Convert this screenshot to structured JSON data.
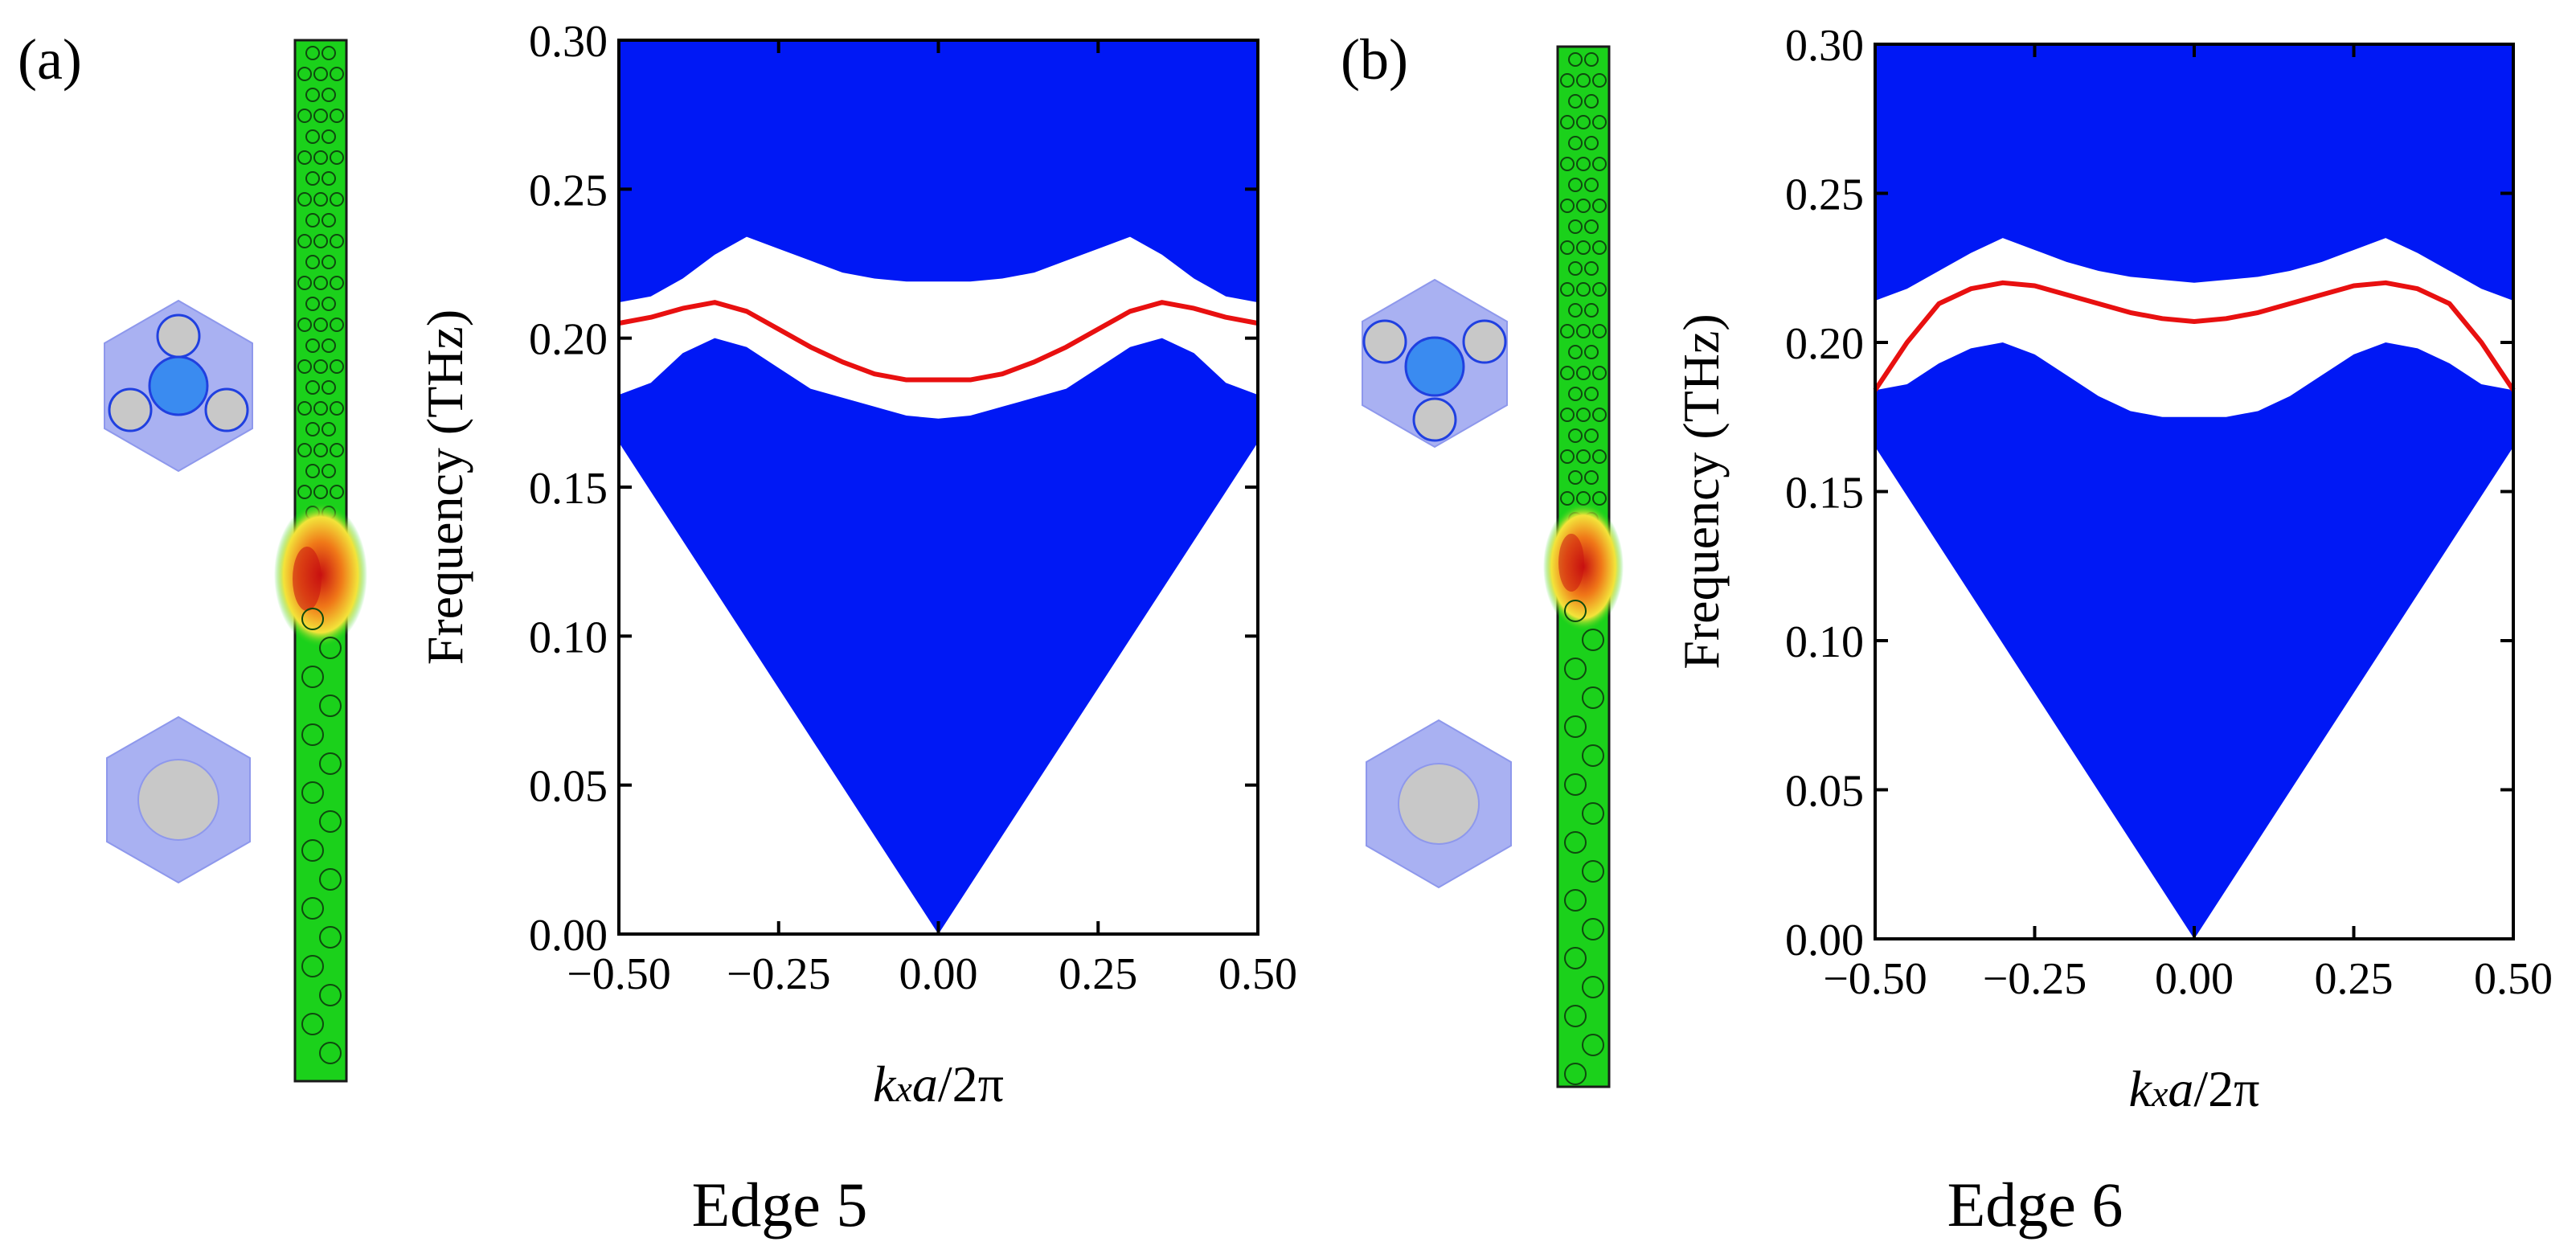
{
  "colors": {
    "bulk": "#0018F5",
    "edge_mode": "#E81010",
    "strip_bg": "#1BD11B",
    "hex_fill": "#A9B1F2",
    "center_disk": "#3A8BF0",
    "gray_disk": "#C8C8C8"
  },
  "chart_data": [
    {
      "type": "area",
      "panel_label": "(a)",
      "caption": "Edge 5",
      "xlabel_k": "k",
      "xlabel_x": "x",
      "xlabel_a": "a",
      "xlabel_rest": "/2π",
      "ylabel": "Frequency (THz)",
      "xlim": [
        -0.5,
        0.5
      ],
      "ylim": [
        0,
        0.3
      ],
      "xticks": [
        -0.5,
        -0.25,
        0,
        0.25,
        0.5
      ],
      "xtick_labels": [
        "−0.50",
        "−0.25",
        "0.00",
        "0.25",
        "0.50"
      ],
      "yticks": [
        0,
        0.05,
        0.1,
        0.15,
        0.2,
        0.25,
        0.3
      ],
      "ytick_labels": [
        "0.00",
        "0.05",
        "0.10",
        "0.15",
        "0.20",
        "0.25",
        "0.30"
      ],
      "lower_bulk_top": {
        "k": [
          -0.5,
          -0.45,
          -0.4,
          -0.35,
          -0.3,
          -0.25,
          -0.2,
          -0.15,
          -0.1,
          -0.05,
          0,
          0.05,
          0.1,
          0.15,
          0.2,
          0.25,
          0.3,
          0.35,
          0.4,
          0.45,
          0.5
        ],
        "f": [
          0.181,
          0.185,
          0.195,
          0.2,
          0.197,
          0.19,
          0.183,
          0.18,
          0.177,
          0.174,
          0.173,
          0.174,
          0.177,
          0.18,
          0.183,
          0.19,
          0.197,
          0.2,
          0.195,
          0.185,
          0.181
        ]
      },
      "lower_bulk_bottom": {
        "k": [
          -0.5,
          0,
          0.5
        ],
        "f": [
          0.165,
          0.0,
          0.165
        ]
      },
      "upper_bulk_bottom": {
        "k": [
          -0.5,
          -0.45,
          -0.4,
          -0.35,
          -0.3,
          -0.25,
          -0.2,
          -0.15,
          -0.1,
          -0.05,
          0,
          0.05,
          0.1,
          0.15,
          0.2,
          0.25,
          0.3,
          0.35,
          0.4,
          0.45,
          0.5
        ],
        "f": [
          0.212,
          0.214,
          0.22,
          0.228,
          0.234,
          0.23,
          0.226,
          0.222,
          0.22,
          0.219,
          0.219,
          0.219,
          0.22,
          0.222,
          0.226,
          0.23,
          0.234,
          0.228,
          0.22,
          0.214,
          0.212
        ]
      },
      "edge_mode": {
        "k": [
          -0.5,
          -0.45,
          -0.4,
          -0.35,
          -0.3,
          -0.25,
          -0.2,
          -0.15,
          -0.1,
          -0.05,
          0,
          0.05,
          0.1,
          0.15,
          0.2,
          0.25,
          0.3,
          0.35,
          0.4,
          0.45,
          0.5
        ],
        "f": [
          0.205,
          0.207,
          0.21,
          0.212,
          0.209,
          0.203,
          0.197,
          0.192,
          0.188,
          0.186,
          0.186,
          0.186,
          0.188,
          0.192,
          0.197,
          0.203,
          0.209,
          0.212,
          0.21,
          0.207,
          0.205
        ]
      }
    },
    {
      "type": "area",
      "panel_label": "(b)",
      "caption": "Edge 6",
      "xlabel_k": "k",
      "xlabel_x": "x",
      "xlabel_a": "a",
      "xlabel_rest": "/2π",
      "ylabel": "Frequency (THz)",
      "xlim": [
        -0.5,
        0.5
      ],
      "ylim": [
        0,
        0.3
      ],
      "xticks": [
        -0.5,
        -0.25,
        0,
        0.25,
        0.5
      ],
      "xtick_labels": [
        "−0.50",
        "−0.25",
        "0.00",
        "0.25",
        "0.50"
      ],
      "yticks": [
        0,
        0.05,
        0.1,
        0.15,
        0.2,
        0.25,
        0.3
      ],
      "ytick_labels": [
        "0.00",
        "0.05",
        "0.10",
        "0.15",
        "0.20",
        "0.25",
        "0.30"
      ],
      "lower_bulk_top": {
        "k": [
          -0.5,
          -0.45,
          -0.4,
          -0.35,
          -0.3,
          -0.25,
          -0.2,
          -0.15,
          -0.1,
          -0.05,
          0,
          0.05,
          0.1,
          0.15,
          0.2,
          0.25,
          0.3,
          0.35,
          0.4,
          0.45,
          0.5
        ],
        "f": [
          0.184,
          0.186,
          0.193,
          0.198,
          0.2,
          0.196,
          0.189,
          0.182,
          0.177,
          0.175,
          0.175,
          0.175,
          0.177,
          0.182,
          0.189,
          0.196,
          0.2,
          0.198,
          0.193,
          0.186,
          0.184
        ]
      },
      "lower_bulk_bottom": {
        "k": [
          -0.5,
          0,
          0.5
        ],
        "f": [
          0.165,
          0.0,
          0.165
        ]
      },
      "upper_bulk_bottom": {
        "k": [
          -0.5,
          -0.45,
          -0.4,
          -0.35,
          -0.3,
          -0.25,
          -0.2,
          -0.15,
          -0.1,
          -0.05,
          0,
          0.05,
          0.1,
          0.15,
          0.2,
          0.25,
          0.3,
          0.35,
          0.4,
          0.45,
          0.5
        ],
        "f": [
          0.214,
          0.218,
          0.224,
          0.23,
          0.235,
          0.231,
          0.227,
          0.224,
          0.222,
          0.221,
          0.22,
          0.221,
          0.222,
          0.224,
          0.227,
          0.231,
          0.235,
          0.23,
          0.224,
          0.218,
          0.214
        ]
      },
      "edge_mode": {
        "k": [
          -0.5,
          -0.45,
          -0.4,
          -0.35,
          -0.3,
          -0.25,
          -0.2,
          -0.15,
          -0.1,
          -0.05,
          0,
          0.05,
          0.1,
          0.15,
          0.2,
          0.25,
          0.3,
          0.35,
          0.4,
          0.45,
          0.5
        ],
        "f": [
          0.184,
          0.2,
          0.213,
          0.218,
          0.22,
          0.219,
          0.216,
          0.213,
          0.21,
          0.208,
          0.207,
          0.208,
          0.21,
          0.213,
          0.216,
          0.219,
          0.22,
          0.218,
          0.213,
          0.2,
          0.184
        ]
      }
    }
  ]
}
